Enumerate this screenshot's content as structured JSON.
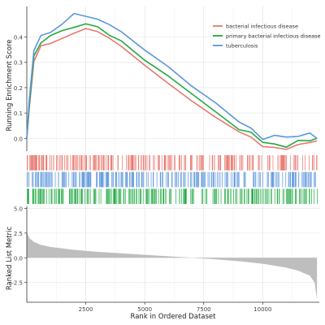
{
  "chart_data": {
    "type": "line",
    "title": "",
    "top_panel": {
      "ylabel": "Running Enrichment Score",
      "yticks": [
        "0.4",
        "0.3",
        "0.2",
        "0.1",
        "0.0"
      ],
      "ytick_values": [
        0.4,
        0.3,
        0.2,
        0.1,
        0.0
      ],
      "ylim": [
        -0.05,
        0.52
      ],
      "series": [
        {
          "name": "bacterial infectious disease",
          "color": "#E8786E",
          "x": [
            0,
            100,
            300,
            600,
            1000,
            1500,
            2000,
            2500,
            3000,
            3500,
            4000,
            5000,
            6000,
            7000,
            8000,
            9000,
            9500,
            10000,
            10500,
            11000,
            11500,
            12000,
            12300
          ],
          "y": [
            0.0,
            0.12,
            0.3,
            0.36,
            0.38,
            0.4,
            0.42,
            0.43,
            0.42,
            0.39,
            0.36,
            0.29,
            0.22,
            0.15,
            0.08,
            0.02,
            0.01,
            -0.03,
            -0.03,
            -0.04,
            -0.02,
            -0.02,
            -0.01
          ]
        },
        {
          "name": "primary bacterial infectious disease",
          "color": "#22AA44",
          "x": [
            0,
            100,
            300,
            600,
            1000,
            1500,
            2000,
            2500,
            3000,
            3500,
            4000,
            5000,
            6000,
            7000,
            8000,
            9000,
            9500,
            10000,
            10500,
            11000,
            11500,
            12000,
            12300
          ],
          "y": [
            0.0,
            0.13,
            0.32,
            0.38,
            0.4,
            0.42,
            0.44,
            0.45,
            0.44,
            0.41,
            0.38,
            0.31,
            0.24,
            0.17,
            0.1,
            0.04,
            0.02,
            -0.02,
            -0.02,
            -0.03,
            -0.01,
            -0.01,
            0.0
          ]
        },
        {
          "name": "tuberculosis",
          "color": "#5B96DC",
          "x": [
            0,
            100,
            300,
            600,
            1000,
            1500,
            2000,
            2500,
            3000,
            3500,
            4000,
            5000,
            6000,
            7000,
            8000,
            9000,
            9500,
            10000,
            10500,
            11000,
            11500,
            12000,
            12300
          ],
          "y": [
            0.0,
            0.15,
            0.35,
            0.4,
            0.42,
            0.45,
            0.49,
            0.48,
            0.47,
            0.45,
            0.42,
            0.35,
            0.28,
            0.21,
            0.14,
            0.07,
            0.04,
            0.0,
            0.01,
            0.0,
            0.01,
            0.02,
            0.0
          ]
        }
      ],
      "legend_placement": "top-right"
    },
    "hits_panel": {
      "rows": [
        {
          "name": "bacterial infectious disease",
          "color": "#E8786E"
        },
        {
          "name": "tuberculosis",
          "color": "#5B96DC"
        },
        {
          "name": "primary bacterial infectious disease",
          "color": "#22AA44"
        }
      ]
    },
    "bottom_panel": {
      "ylabel": "Ranked List Metric",
      "yticks": [
        "5.0",
        "2.5",
        "0.0",
        "-2.5"
      ],
      "ytick_values": [
        5.0,
        2.5,
        0.0,
        -2.5
      ],
      "ylim": [
        -4.5,
        5.2
      ],
      "fill_color": "#BEBEBE",
      "x": [
        0,
        100,
        300,
        600,
        1000,
        2000,
        3000,
        4000,
        5000,
        6000,
        7000,
        8000,
        9000,
        10000,
        11000,
        11500,
        12000,
        12200,
        12300
      ],
      "y": [
        2.6,
        2.0,
        1.6,
        1.3,
        1.1,
        0.8,
        0.6,
        0.45,
        0.3,
        0.15,
        0.0,
        -0.15,
        -0.35,
        -0.6,
        -1.0,
        -1.3,
        -1.8,
        -2.5,
        -4.2
      ]
    },
    "xaxis": {
      "xlabel": "Rank in Ordered Dataset",
      "xticks": [
        "2500",
        "5000",
        "7500",
        "10000"
      ],
      "xtick_values": [
        2500,
        5000,
        7500,
        10000
      ],
      "xlim": [
        0,
        12400
      ]
    },
    "grid": true
  }
}
